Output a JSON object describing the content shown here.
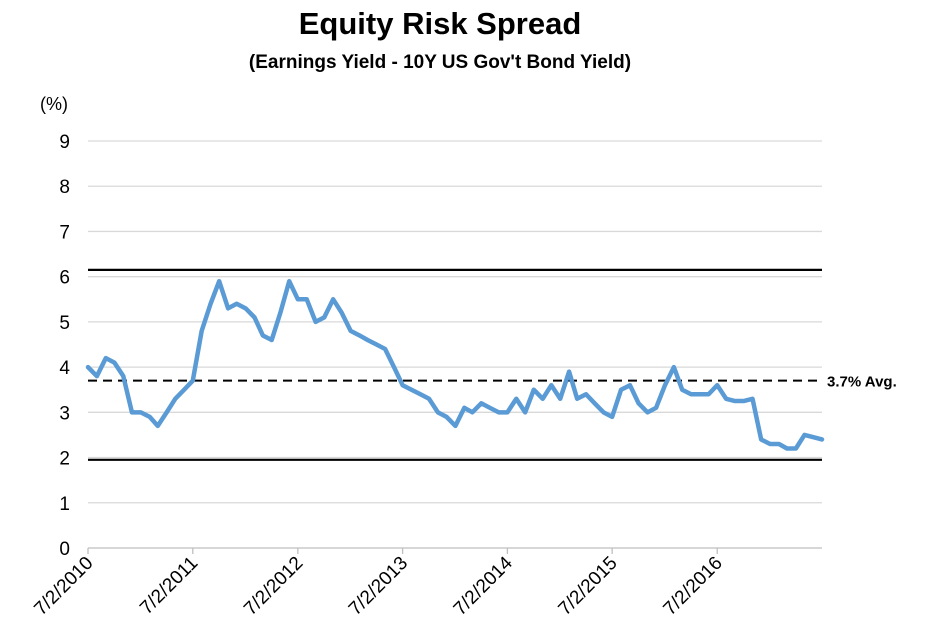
{
  "chart_data": {
    "type": "line",
    "title": "Equity Risk Spread",
    "subtitle": "(Earnings Yield - 10Y US Gov't Bond Yield)",
    "y_label": "(%)",
    "x": [
      "7/2/2010",
      "8/2/2010",
      "9/2/2010",
      "10/2/2010",
      "11/2/2010",
      "12/2/2010",
      "1/2/2011",
      "2/2/2011",
      "3/2/2011",
      "4/2/2011",
      "5/2/2011",
      "6/2/2011",
      "7/2/2011",
      "8/2/2011",
      "9/2/2011",
      "10/2/2011",
      "11/2/2011",
      "12/2/2011",
      "1/2/2012",
      "2/2/2012",
      "3/2/2012",
      "4/2/2012",
      "5/2/2012",
      "6/2/2012",
      "7/2/2012",
      "8/2/2012",
      "9/2/2012",
      "10/2/2012",
      "11/2/2012",
      "12/2/2012",
      "1/2/2013",
      "2/2/2013",
      "3/2/2013",
      "4/2/2013",
      "5/2/2013",
      "6/2/2013",
      "7/2/2013",
      "8/2/2013",
      "9/2/2013",
      "10/2/2013",
      "11/2/2013",
      "12/2/2013",
      "1/2/2014",
      "2/2/2014",
      "3/2/2014",
      "4/2/2014",
      "5/2/2014",
      "6/2/2014",
      "7/2/2014",
      "8/2/2014",
      "9/2/2014",
      "10/2/2014",
      "11/2/2014",
      "12/2/2014",
      "1/2/2015",
      "2/2/2015",
      "3/2/2015",
      "4/2/2015",
      "5/2/2015",
      "6/2/2015",
      "7/2/2015",
      "8/2/2015",
      "9/2/2015",
      "10/2/2015",
      "11/2/2015",
      "12/2/2015",
      "1/2/2016",
      "2/2/2016",
      "3/2/2016",
      "4/2/2016",
      "5/2/2016",
      "6/2/2016",
      "7/2/2016",
      "8/2/2016",
      "9/2/2016",
      "10/2/2016",
      "11/2/2016",
      "12/2/2016",
      "1/2/2017",
      "2/2/2017",
      "3/2/2017",
      "4/2/2017",
      "5/2/2017",
      "6/2/2017",
      "7/2/2017"
    ],
    "series": [
      {
        "name": "Equity Risk Spread",
        "color": "#5b9bd5",
        "values": [
          4.0,
          3.8,
          4.2,
          4.1,
          3.8,
          3.0,
          3.0,
          2.9,
          2.7,
          3.0,
          3.3,
          3.5,
          3.7,
          4.8,
          5.4,
          5.9,
          5.3,
          5.4,
          5.3,
          5.1,
          4.7,
          4.6,
          5.2,
          5.9,
          5.5,
          5.5,
          5.0,
          5.1,
          5.5,
          5.2,
          4.8,
          4.7,
          4.6,
          4.5,
          4.4,
          4.0,
          3.6,
          3.5,
          3.4,
          3.3,
          3.0,
          2.9,
          2.7,
          3.1,
          3.0,
          3.2,
          3.1,
          3.0,
          3.0,
          3.3,
          3.0,
          3.5,
          3.3,
          3.6,
          3.3,
          3.9,
          3.3,
          3.4,
          3.2,
          3.0,
          2.9,
          3.5,
          3.6,
          3.2,
          3.0,
          3.1,
          3.6,
          4.0,
          3.5,
          3.4,
          3.4,
          3.4,
          3.6,
          3.3,
          3.25,
          3.25,
          3.3,
          2.4,
          2.3,
          2.3,
          2.2,
          2.2,
          2.5,
          2.45,
          2.4
        ]
      }
    ],
    "xlim": [
      "7/2/2010",
      "7/2/2017"
    ],
    "xticks": [
      "7/2/2010",
      "7/2/2011",
      "7/2/2012",
      "7/2/2013",
      "7/2/2014",
      "7/2/2015",
      "7/2/2016"
    ],
    "ylim": [
      0,
      9
    ],
    "yticks": [
      0,
      1,
      2,
      3,
      4,
      5,
      6,
      7,
      8,
      9
    ],
    "grid": true,
    "average": {
      "value": 3.7,
      "label": "3.7% Avg."
    },
    "reference_lines": [
      6.15,
      1.95
    ]
  }
}
